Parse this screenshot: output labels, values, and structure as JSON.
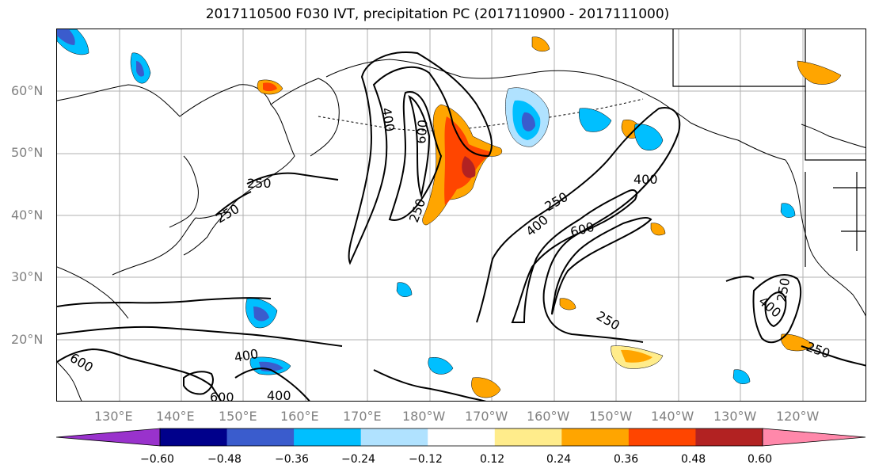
{
  "title": "2017110500 F030 IVT, precipitation PC (2017110900 - 2017111000)",
  "lat_labels": [
    "60°N",
    "50°N",
    "40°N",
    "30°N",
    "20°N"
  ],
  "lon_labels": [
    "130°E",
    "140°E",
    "150°E",
    "160°E",
    "170°E",
    "180°W",
    "170°W",
    "160°W",
    "150°W",
    "140°W",
    "130°W",
    "120°W"
  ],
  "colorbar": {
    "colors": [
      "#9932cc",
      "#00008b",
      "#3a5ccd",
      "#00bfff",
      "#b0e2ff",
      "#ffffff",
      "#ffec8b",
      "#ffa500",
      "#ff4500",
      "#b22222",
      "#ff88aa"
    ],
    "tick_labels": [
      "−0.60",
      "−0.48",
      "−0.36",
      "−0.24",
      "−0.12",
      "0.12",
      "0.24",
      "0.36",
      "0.48",
      "0.60"
    ]
  },
  "contour_labels": [
    "250",
    "250",
    "400",
    "600",
    "250",
    "400",
    "250",
    "600",
    "400",
    "250",
    "400",
    "250",
    "250",
    "600",
    "400",
    "600"
  ]
}
